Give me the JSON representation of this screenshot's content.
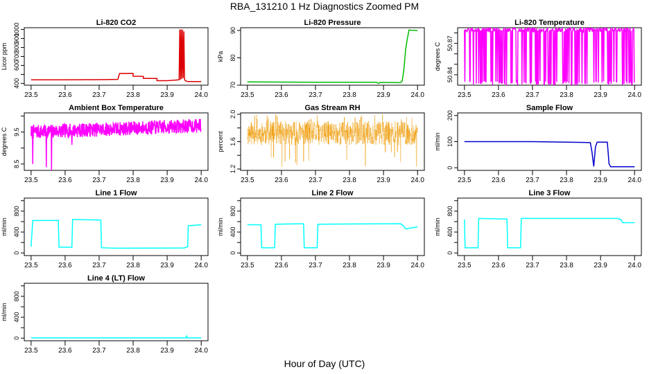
{
  "figure": {
    "title": "RBA_131210  1 Hz Diagnostics Zoomed PM",
    "xlabel": "Hour of Day (UTC)"
  },
  "chart_data": [
    {
      "type": "line",
      "title": "Li-820 CO2",
      "ylabel": "Licor ppm",
      "color": "#dd0000",
      "xlim": [
        23.5,
        24.0
      ],
      "ylim": [
        380,
        1020
      ],
      "xticks": [
        "23.5",
        "23.6",
        "23.7",
        "23.8",
        "23.9",
        "24.0"
      ],
      "yticks": [
        400,
        500,
        600,
        700,
        800,
        900,
        1000
      ],
      "yticklabels": [
        "400",
        "",
        "600",
        "700",
        "800",
        "900",
        "1000"
      ],
      "series": [
        {
          "name": "CO2",
          "x": [
            23.5,
            23.55,
            23.6,
            23.65,
            23.7,
            23.755,
            23.76,
            23.8,
            23.8,
            23.83,
            23.83,
            23.87,
            23.87,
            23.9,
            23.935,
            23.937,
            23.939,
            23.941,
            23.943,
            23.945,
            23.947,
            23.949,
            23.951,
            23.953,
            23.96,
            24.0
          ],
          "y": [
            440,
            440,
            440,
            441,
            442,
            445,
            510,
            511,
            480,
            478,
            455,
            455,
            430,
            430,
            440,
            1000,
            440,
            1000,
            450,
            1000,
            460,
            980,
            450,
            430,
            420,
            420
          ]
        }
      ]
    },
    {
      "type": "line",
      "title": "Li-820 Pressure",
      "ylabel": "kPa",
      "color": "#00bb00",
      "xlim": [
        23.5,
        24.0
      ],
      "ylim": [
        70,
        91
      ],
      "xticks": [
        "23.5",
        "23.6",
        "23.7",
        "23.8",
        "23.9",
        "24.0"
      ],
      "yticks": [
        70,
        80,
        90
      ],
      "yticklabels": [
        "70",
        "80",
        "90"
      ],
      "series": [
        {
          "name": "Pressure",
          "x": [
            23.5,
            23.7,
            23.88,
            23.885,
            23.89,
            23.95,
            23.955,
            23.96,
            23.965,
            23.97,
            23.975,
            23.98,
            24.0
          ],
          "y": [
            71.2,
            71.1,
            71.1,
            70.6,
            71.0,
            70.9,
            71.5,
            76,
            83,
            87,
            90.2,
            90.1,
            90.0
          ]
        }
      ]
    },
    {
      "type": "line",
      "title": "Li-820 Temperature",
      "ylabel": "degrees C",
      "color": "#ff00ff",
      "xlim": [
        23.5,
        24.0
      ],
      "ylim": [
        50.83,
        50.885
      ],
      "xticks": [
        "23.5",
        "23.6",
        "23.7",
        "23.8",
        "23.9",
        "24.0"
      ],
      "yticks": [
        50.84,
        50.85,
        50.86,
        50.87,
        50.88
      ],
      "yticklabels": [
        "50.84",
        "",
        "",
        "50.87",
        ""
      ],
      "series": [
        {
          "name": "Temperature",
          "pattern": "oscillating",
          "x_range": [
            23.5,
            24.0
          ],
          "band": [
            50.83,
            50.885
          ],
          "seed": 3
        }
      ]
    },
    {
      "type": "line",
      "title": "Ambient Box Temperature",
      "ylabel": "degrees C",
      "color": "#ff00ff",
      "xlim": [
        23.5,
        24.0
      ],
      "ylim": [
        8.3,
        10.1
      ],
      "xticks": [
        "23.5",
        "23.6",
        "23.7",
        "23.8",
        "23.9",
        "24.0"
      ],
      "yticks": [
        8.5,
        9.0,
        9.5,
        10.0
      ],
      "yticklabels": [
        "8.5",
        "",
        "9.5",
        ""
      ],
      "series": [
        {
          "name": "Ambient",
          "pattern": "noisy",
          "x_range": [
            23.5,
            24.0
          ],
          "level_start": 9.5,
          "level_end": 9.7,
          "spread": 0.22,
          "dips": [
            [
              23.505,
              8.5
            ],
            [
              23.545,
              8.4
            ],
            [
              23.56,
              8.3
            ],
            [
              23.62,
              9.1
            ]
          ],
          "seed": 7
        }
      ]
    },
    {
      "type": "scatter",
      "title": "Gas Stream RH",
      "ylabel": "percent",
      "color": "#ee9900",
      "xlim": [
        23.5,
        24.0
      ],
      "ylim": [
        1.18,
        2.02
      ],
      "xticks": [
        "23.5",
        "23.6",
        "23.7",
        "23.8",
        "23.9",
        "24.0"
      ],
      "yticks": [
        1.2,
        1.4,
        1.6,
        1.8,
        2.0
      ],
      "yticklabels": [
        "1.2",
        "",
        "1.6",
        "",
        "2.0"
      ],
      "series": [
        {
          "name": "RH",
          "pattern": "dense",
          "x_range": [
            23.5,
            24.0
          ],
          "band": [
            1.55,
            1.9
          ],
          "outliers": [
            1.2,
            2.0
          ],
          "seed": 11
        }
      ]
    },
    {
      "type": "line",
      "title": "Sample Flow",
      "ylabel": "ml/min",
      "color": "#0000cc",
      "xlim": [
        23.5,
        24.0
      ],
      "ylim": [
        -10,
        210
      ],
      "xticks": [
        "23.5",
        "23.6",
        "23.7",
        "23.8",
        "23.9",
        "24.0"
      ],
      "yticks": [
        0,
        100,
        200
      ],
      "yticklabels": [
        "0",
        "100",
        "200"
      ],
      "series": [
        {
          "name": "Sample Flow",
          "x": [
            23.5,
            23.7,
            23.85,
            23.87,
            23.875,
            23.88,
            23.885,
            23.89,
            23.92,
            23.925,
            23.93,
            24.0
          ],
          "y": [
            100,
            100,
            97,
            96,
            60,
            5,
            80,
            98,
            98,
            15,
            4,
            4
          ]
        }
      ]
    },
    {
      "type": "line",
      "title": "Line 1 Flow",
      "ylabel": "ml/min",
      "color": "#00ffff",
      "xlim": [
        23.5,
        24.0
      ],
      "ylim": [
        -50,
        1050
      ],
      "xticks": [
        "23.5",
        "23.6",
        "23.7",
        "23.8",
        "23.9",
        "24.0"
      ],
      "yticks": [
        0,
        200,
        400,
        600,
        800,
        1000
      ],
      "yticklabels": [
        "0",
        "",
        "400",
        "",
        "800",
        ""
      ],
      "series": [
        {
          "name": "Line 1",
          "x": [
            23.5,
            23.505,
            23.58,
            23.582,
            23.62,
            23.622,
            23.705,
            23.707,
            23.75,
            23.95,
            23.96,
            23.962,
            24.0
          ],
          "y": [
            120,
            620,
            620,
            110,
            110,
            640,
            630,
            100,
            90,
            95,
            120,
            520,
            540
          ]
        }
      ]
    },
    {
      "type": "line",
      "title": "Line 2 Flow",
      "ylabel": "ml/min",
      "color": "#00ffff",
      "xlim": [
        23.5,
        24.0
      ],
      "ylim": [
        -50,
        1050
      ],
      "xticks": [
        "23.5",
        "23.6",
        "23.7",
        "23.8",
        "23.9",
        "24.0"
      ],
      "yticks": [
        0,
        200,
        400,
        600,
        800,
        1000
      ],
      "yticklabels": [
        "0",
        "",
        "400",
        "",
        "800",
        ""
      ],
      "series": [
        {
          "name": "Line 2",
          "x": [
            23.5,
            23.54,
            23.542,
            23.58,
            23.582,
            23.665,
            23.667,
            23.705,
            23.707,
            23.95,
            23.96,
            23.965,
            24.0
          ],
          "y": [
            540,
            540,
            100,
            100,
            550,
            560,
            100,
            100,
            550,
            560,
            510,
            460,
            500
          ]
        }
      ]
    },
    {
      "type": "line",
      "title": "Line 3 Flow",
      "ylabel": "ml/min",
      "color": "#00ffff",
      "xlim": [
        23.5,
        24.0
      ],
      "ylim": [
        -50,
        1050
      ],
      "xticks": [
        "23.5",
        "23.6",
        "23.7",
        "23.8",
        "23.9",
        "24.0"
      ],
      "yticks": [
        0,
        200,
        400,
        600,
        800,
        1000
      ],
      "yticklabels": [
        "0",
        "",
        "400",
        "",
        "800",
        ""
      ],
      "series": [
        {
          "name": "Line 3",
          "x": [
            23.5,
            23.502,
            23.54,
            23.542,
            23.625,
            23.627,
            23.665,
            23.667,
            23.95,
            23.96,
            23.965,
            24.0
          ],
          "y": [
            640,
            100,
            100,
            660,
            650,
            100,
            100,
            660,
            660,
            640,
            580,
            580
          ]
        }
      ]
    },
    {
      "type": "line",
      "title": "Line 4 (LT) Flow",
      "ylabel": "ml/min",
      "color": "#00ffff",
      "xlim": [
        23.5,
        24.0
      ],
      "ylim": [
        -50,
        1050
      ],
      "xticks": [
        "23.5",
        "23.6",
        "23.7",
        "23.8",
        "23.9",
        "24.0"
      ],
      "yticks": [
        0,
        200,
        400,
        600,
        800,
        1000
      ],
      "yticklabels": [
        "0",
        "",
        "400",
        "",
        "800",
        ""
      ],
      "series": [
        {
          "name": "Line 4",
          "x": [
            23.5,
            23.955,
            23.957,
            23.959,
            24.0
          ],
          "y": [
            5,
            5,
            40,
            5,
            5
          ]
        }
      ]
    }
  ]
}
